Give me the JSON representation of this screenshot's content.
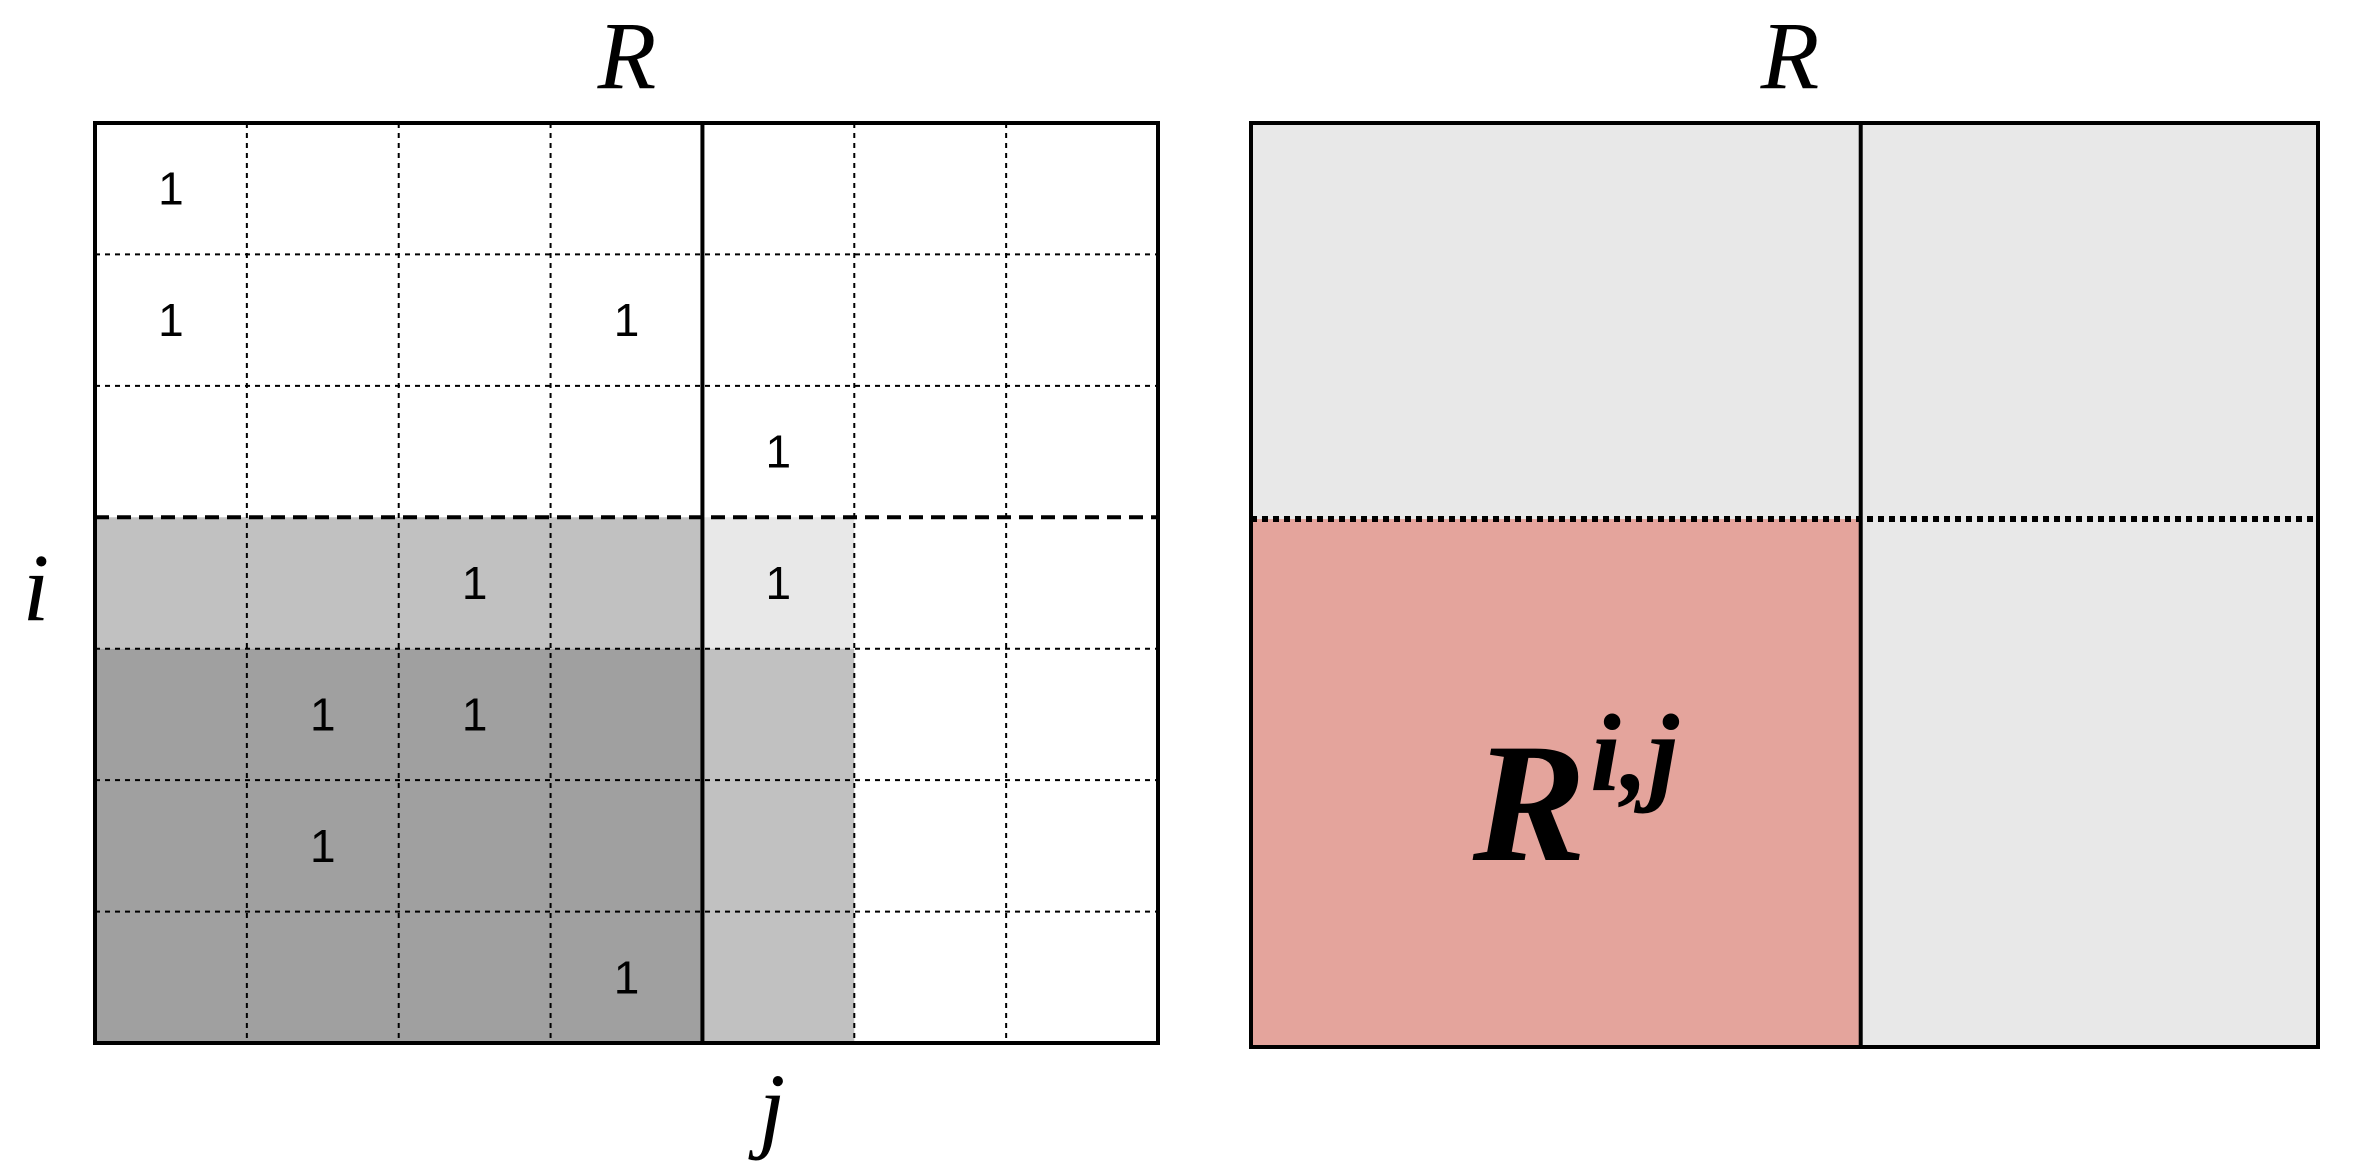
{
  "left_matrix": {
    "top_label": "R",
    "row_label": "i",
    "col_label": "j",
    "rows": 7,
    "cols": 7,
    "split_row": 3,
    "split_col": 4,
    "ones": [
      [
        0,
        0
      ],
      [
        1,
        0
      ],
      [
        1,
        3
      ],
      [
        2,
        4
      ],
      [
        3,
        2
      ],
      [
        3,
        4
      ],
      [
        4,
        1
      ],
      [
        4,
        2
      ],
      [
        5,
        1
      ],
      [
        6,
        3
      ]
    ],
    "one_text": "1",
    "colors": {
      "light_gray": "#c1c1c1",
      "lighter_gray": "#e8e8e8",
      "dark_gray": "#a0a0a0",
      "white": "#ffffff",
      "line": "#000000"
    },
    "shading": [
      {
        "rows": [
          3,
          3
        ],
        "cols": [
          0,
          3
        ],
        "color": "light_gray"
      },
      {
        "rows": [
          3,
          3
        ],
        "cols": [
          4,
          4
        ],
        "color": "lighter_gray"
      },
      {
        "rows": [
          4,
          6
        ],
        "cols": [
          0,
          3
        ],
        "color": "dark_gray"
      },
      {
        "rows": [
          4,
          6
        ],
        "cols": [
          4,
          4
        ],
        "color": "light_gray"
      }
    ]
  },
  "right_matrix": {
    "top_label": "R",
    "block_label_base": "R",
    "block_label_sup": "i,j",
    "colors": {
      "block_fill": "#e4a49c",
      "background_fill": "#e8e8e8",
      "line": "#000000"
    }
  }
}
